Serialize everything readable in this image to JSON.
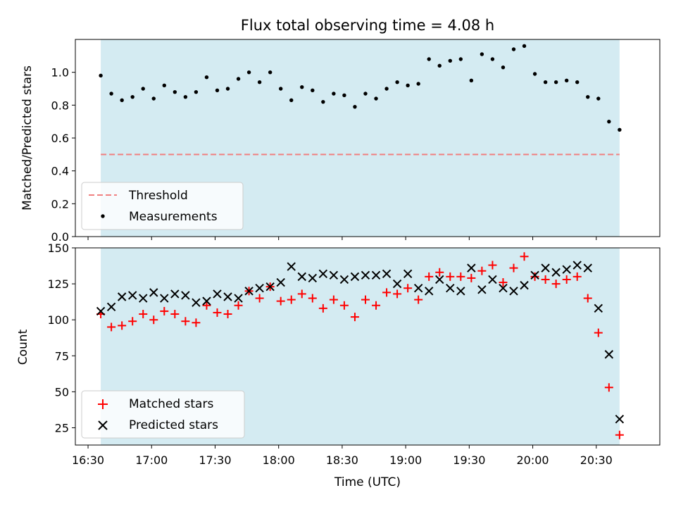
{
  "chart_data": [
    {
      "type": "scatter",
      "title": "Flux total observing time = 4.08 h",
      "ylabel": "Matched/Predicted stars",
      "xlabel": "",
      "xlim": [
        "16:24",
        "21:00"
      ],
      "ylim": [
        0,
        1.2
      ],
      "yticks": [
        "0.0",
        "0.2",
        "0.4",
        "0.6",
        "0.8",
        "1.0"
      ],
      "shaded_span": [
        "16:36",
        "20:41"
      ],
      "legend_position": "lower-left",
      "threshold": {
        "name": "Threshold",
        "value": 0.5,
        "x_range": [
          "16:36",
          "20:41"
        ],
        "color": "#f08080"
      },
      "series": [
        {
          "name": "Measurements",
          "marker": "dot",
          "color": "#000000",
          "x": [
            "16:36",
            "16:41",
            "16:46",
            "16:51",
            "16:56",
            "17:01",
            "17:06",
            "17:11",
            "17:16",
            "17:21",
            "17:26",
            "17:31",
            "17:36",
            "17:41",
            "17:46",
            "17:51",
            "17:56",
            "18:01",
            "18:06",
            "18:11",
            "18:16",
            "18:21",
            "18:26",
            "18:31",
            "18:36",
            "18:41",
            "18:46",
            "18:51",
            "18:56",
            "19:01",
            "19:06",
            "19:11",
            "19:16",
            "19:21",
            "19:26",
            "19:31",
            "19:36",
            "19:41",
            "19:46",
            "19:51",
            "19:56",
            "20:01",
            "20:06",
            "20:11",
            "20:16",
            "20:21",
            "20:26",
            "20:31",
            "20:36",
            "20:41"
          ],
          "y": [
            0.98,
            0.87,
            0.83,
            0.85,
            0.9,
            0.84,
            0.92,
            0.88,
            0.85,
            0.88,
            0.97,
            0.89,
            0.9,
            0.96,
            1.0,
            0.94,
            1.0,
            0.9,
            0.83,
            0.91,
            0.89,
            0.82,
            0.87,
            0.86,
            0.79,
            0.87,
            0.84,
            0.9,
            0.94,
            0.92,
            0.93,
            1.08,
            1.04,
            1.07,
            1.08,
            0.95,
            1.11,
            1.08,
            1.03,
            1.14,
            1.16,
            0.99,
            0.94,
            0.94,
            0.95,
            0.94,
            0.85,
            0.84,
            0.7,
            0.65
          ]
        }
      ]
    },
    {
      "type": "scatter",
      "title": "",
      "ylabel": "Count",
      "xlabel": "Time (UTC)",
      "xlim": [
        "16:24",
        "21:00"
      ],
      "ylim": [
        13,
        150
      ],
      "yticks": [
        "25",
        "50",
        "75",
        "100",
        "125",
        "150"
      ],
      "xticks": [
        "16:30",
        "17:00",
        "17:30",
        "18:00",
        "18:30",
        "19:00",
        "19:30",
        "20:00",
        "20:30"
      ],
      "shaded_span": [
        "16:36",
        "20:41"
      ],
      "legend_position": "lower-left",
      "series": [
        {
          "name": "Matched stars",
          "marker": "plus",
          "color": "#ff0000",
          "x": [
            "16:36",
            "16:41",
            "16:46",
            "16:51",
            "16:56",
            "17:01",
            "17:06",
            "17:11",
            "17:16",
            "17:21",
            "17:26",
            "17:31",
            "17:36",
            "17:41",
            "17:46",
            "17:51",
            "17:56",
            "18:01",
            "18:06",
            "18:11",
            "18:16",
            "18:21",
            "18:26",
            "18:31",
            "18:36",
            "18:41",
            "18:46",
            "18:51",
            "18:56",
            "19:01",
            "19:06",
            "19:11",
            "19:16",
            "19:21",
            "19:26",
            "19:31",
            "19:36",
            "19:41",
            "19:46",
            "19:51",
            "19:56",
            "20:01",
            "20:06",
            "20:11",
            "20:16",
            "20:21",
            "20:26",
            "20:31",
            "20:36",
            "20:41"
          ],
          "y": [
            104,
            95,
            96,
            99,
            104,
            100,
            106,
            104,
            99,
            98,
            110,
            105,
            104,
            110,
            120,
            115,
            123,
            113,
            114,
            118,
            115,
            108,
            114,
            110,
            102,
            114,
            110,
            119,
            118,
            122,
            114,
            130,
            133,
            130,
            130,
            129,
            134,
            138,
            126,
            136,
            144,
            130,
            128,
            125,
            128,
            130,
            115,
            91,
            53,
            20
          ]
        },
        {
          "name": "Predicted stars",
          "marker": "x",
          "color": "#000000",
          "x": [
            "16:36",
            "16:41",
            "16:46",
            "16:51",
            "16:56",
            "17:01",
            "17:06",
            "17:11",
            "17:16",
            "17:21",
            "17:26",
            "17:31",
            "17:36",
            "17:41",
            "17:46",
            "17:51",
            "17:56",
            "18:01",
            "18:06",
            "18:11",
            "18:16",
            "18:21",
            "18:26",
            "18:31",
            "18:36",
            "18:41",
            "18:46",
            "18:51",
            "18:56",
            "19:01",
            "19:06",
            "19:11",
            "19:16",
            "19:21",
            "19:26",
            "19:31",
            "19:36",
            "19:41",
            "19:46",
            "19:51",
            "19:56",
            "20:01",
            "20:06",
            "20:11",
            "20:16",
            "20:21",
            "20:26",
            "20:31",
            "20:36",
            "20:41"
          ],
          "y": [
            106,
            109,
            116,
            117,
            115,
            119,
            115,
            118,
            117,
            112,
            113,
            118,
            116,
            115,
            120,
            122,
            123,
            126,
            137,
            130,
            129,
            132,
            131,
            128,
            130,
            131,
            131,
            132,
            125,
            132,
            122,
            120,
            128,
            122,
            120,
            136,
            121,
            128,
            122,
            120,
            124,
            131,
            136,
            133,
            135,
            138,
            136,
            108,
            76,
            31
          ]
        }
      ]
    }
  ]
}
